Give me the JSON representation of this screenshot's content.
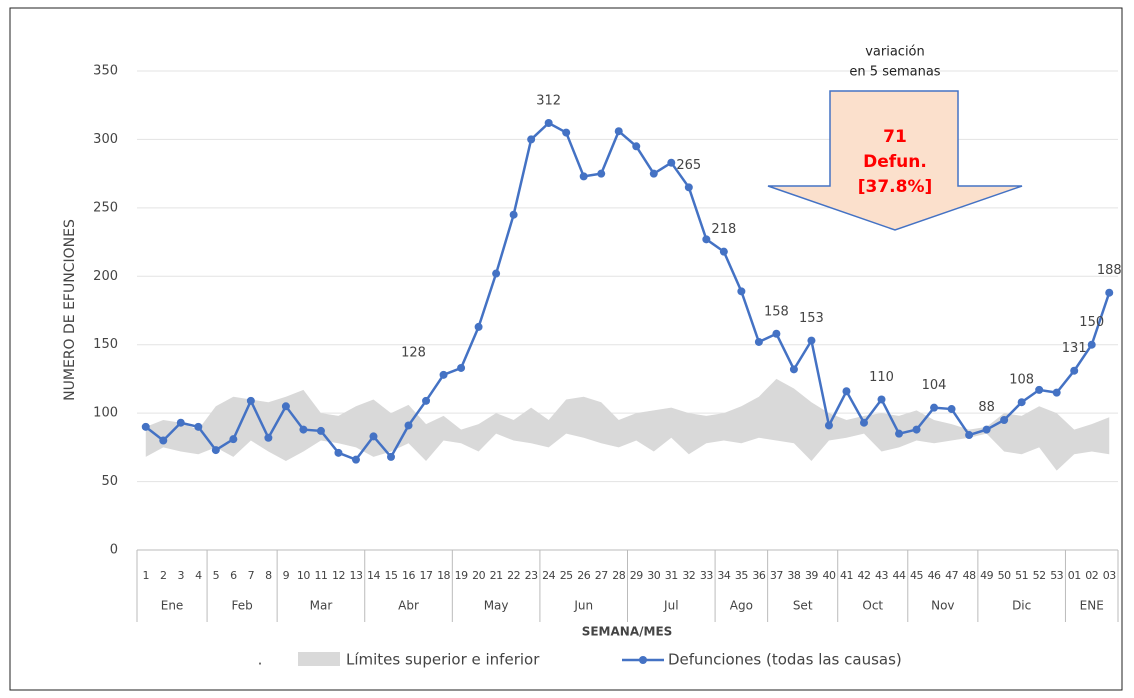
{
  "chart_data": {
    "type": "line",
    "y_label": "NUMERO DE EFUNCIONES",
    "x_label": "SEMANA/MES",
    "categories": [
      "1",
      "2",
      "3",
      "4",
      "5",
      "6",
      "7",
      "8",
      "9",
      "10",
      "11",
      "12",
      "13",
      "14",
      "15",
      "16",
      "17",
      "18",
      "19",
      "20",
      "21",
      "22",
      "23",
      "24",
      "25",
      "26",
      "27",
      "28",
      "29",
      "30",
      "31",
      "32",
      "33",
      "34",
      "35",
      "36",
      "37",
      "38",
      "39",
      "40",
      "41",
      "42",
      "43",
      "44",
      "45",
      "46",
      "47",
      "48",
      "49",
      "50",
      "51",
      "52",
      "53",
      "01",
      "02",
      "03"
    ],
    "groups": [
      {
        "label": "Ene",
        "count": 4
      },
      {
        "label": "Feb",
        "count": 4
      },
      {
        "label": "Mar",
        "count": 5
      },
      {
        "label": "Abr",
        "count": 5
      },
      {
        "label": "May",
        "count": 5
      },
      {
        "label": "Jun",
        "count": 5
      },
      {
        "label": "Jul",
        "count": 5
      },
      {
        "label": "Ago",
        "count": 3
      },
      {
        "label": "Set",
        "count": 4
      },
      {
        "label": "Oct",
        "count": 4
      },
      {
        "label": "Nov",
        "count": 4
      },
      {
        "label": "Dic",
        "count": 5
      },
      {
        "label": "ENE",
        "count": 3
      }
    ],
    "series": [
      {
        "name": "Límites superior e inferior",
        "color": "#d9d9d9",
        "kind": "band",
        "upper": [
          90,
          95,
          93,
          88,
          105,
          112,
          110,
          108,
          112,
          117,
          100,
          98,
          105,
          110,
          100,
          106,
          92,
          98,
          88,
          92,
          100,
          95,
          104,
          95,
          110,
          112,
          108,
          95,
          100,
          102,
          104,
          100,
          98,
          100,
          105,
          112,
          125,
          118,
          108,
          100,
          95,
          98,
          100,
          98,
          102,
          95,
          92,
          88,
          90,
          100,
          98,
          105,
          100,
          88,
          92,
          97
        ],
        "lower": [
          68,
          75,
          72,
          70,
          75,
          68,
          80,
          72,
          65,
          72,
          80,
          78,
          75,
          68,
          72,
          78,
          65,
          80,
          78,
          72,
          85,
          80,
          78,
          75,
          85,
          82,
          78,
          75,
          80,
          72,
          82,
          70,
          78,
          80,
          78,
          82,
          80,
          78,
          65,
          80,
          82,
          85,
          72,
          75,
          80,
          78,
          80,
          82,
          85,
          72,
          70,
          75,
          58,
          70,
          72,
          70
        ]
      },
      {
        "name": "Defunciones (todas las causas)",
        "color": "#4472c4",
        "kind": "line",
        "values": [
          90,
          80,
          93,
          90,
          73,
          81,
          109,
          82,
          105,
          88,
          87,
          71,
          66,
          83,
          68,
          91,
          109,
          128,
          133,
          163,
          202,
          245,
          300,
          312,
          305,
          273,
          275,
          306,
          295,
          275,
          283,
          265,
          227,
          218,
          189,
          152,
          158,
          132,
          153,
          91,
          116,
          93,
          110,
          85,
          88,
          104,
          103,
          84,
          88,
          95,
          108,
          117,
          115,
          131,
          150,
          188
        ],
        "value_labels": [
          null,
          null,
          null,
          null,
          null,
          null,
          null,
          null,
          null,
          null,
          null,
          null,
          null,
          null,
          null,
          null,
          null,
          "128",
          null,
          null,
          null,
          null,
          null,
          "312",
          null,
          null,
          null,
          null,
          null,
          null,
          null,
          "265",
          null,
          "218",
          null,
          null,
          "158",
          null,
          "153",
          null,
          null,
          null,
          "110",
          null,
          null,
          "104",
          null,
          null,
          "88",
          null,
          "108",
          null,
          null,
          "131",
          "150",
          "188"
        ]
      }
    ],
    "ylim": [
      0,
      350
    ],
    "yticks": [
      0,
      50,
      100,
      150,
      200,
      250,
      300,
      350
    ],
    "grid": true,
    "legend_prefix": ".",
    "annotation": {
      "header": [
        "variación",
        "en 5 semanas"
      ],
      "body": [
        "71",
        "Defun.",
        "[37.8%]"
      ]
    }
  }
}
